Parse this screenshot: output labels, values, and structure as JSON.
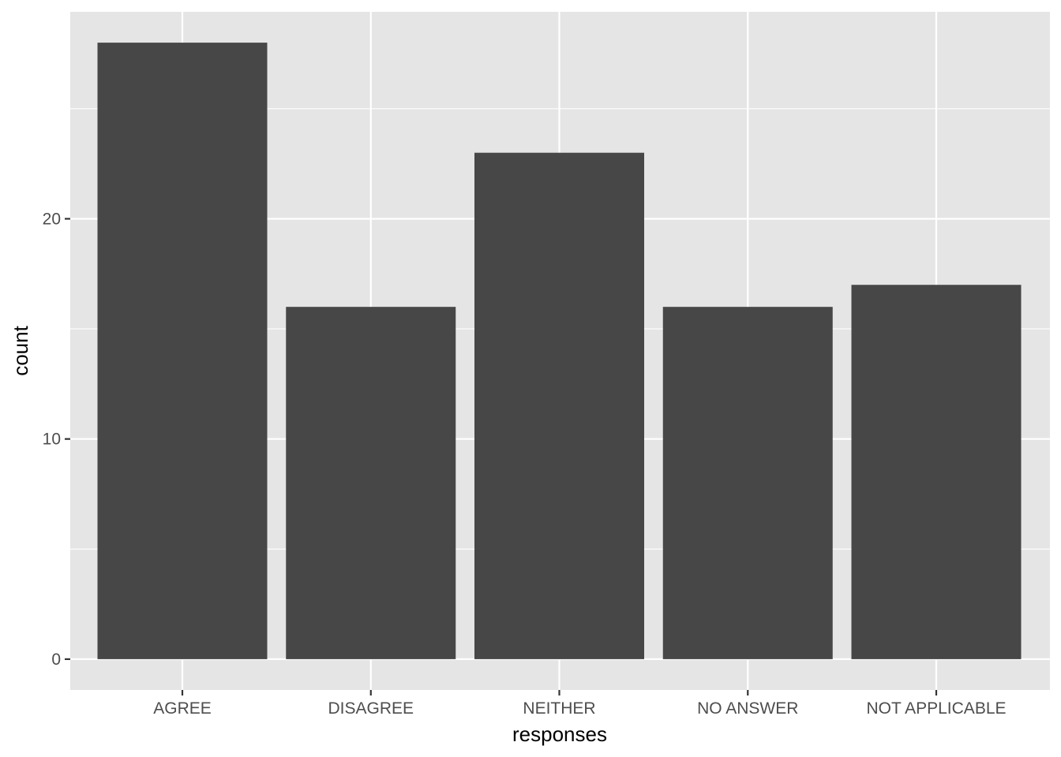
{
  "chart_data": {
    "type": "bar",
    "title": "",
    "xlabel": "responses",
    "ylabel": "count",
    "categories": [
      "AGREE",
      "DISAGREE",
      "NEITHER",
      "NO ANSWER",
      "NOT APPLICABLE"
    ],
    "values": [
      28,
      16,
      23,
      16,
      17
    ],
    "ylim": [
      -1.4,
      29.4
    ],
    "yticks": [
      0,
      10,
      20
    ],
    "ytick_labels": [
      "0",
      "10",
      "20"
    ],
    "grid": true,
    "legend": "none",
    "colors": {
      "bar": "#474747",
      "panel_background": "#e5e5e5",
      "gridline": "#ffffff",
      "tick_text": "#4d4d4d",
      "axis_title": "#000000"
    }
  }
}
